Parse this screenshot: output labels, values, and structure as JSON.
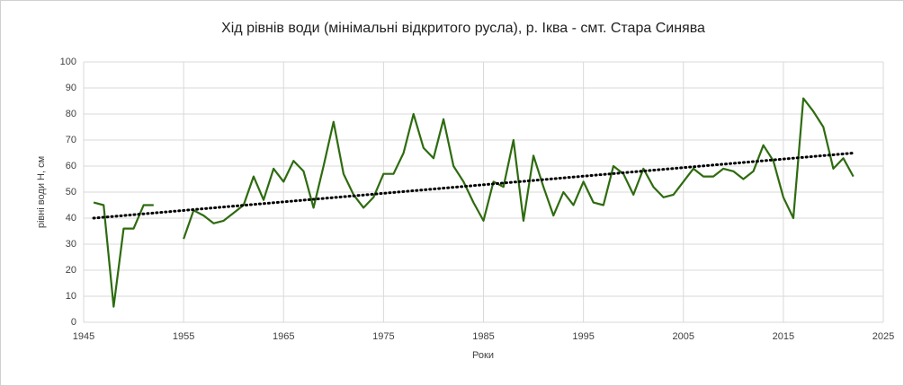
{
  "chart_data": {
    "type": "line",
    "title": "Хід рівнів води (мінімальні відкритого русла), р. Іква - смт. Стара Синява",
    "x_label": "Роки",
    "y_label": "рівні води Н, см",
    "x": [
      1946,
      1947,
      1948,
      1949,
      1950,
      1951,
      1952,
      1953,
      1954,
      1955,
      1956,
      1957,
      1958,
      1959,
      1960,
      1961,
      1962,
      1963,
      1964,
      1965,
      1966,
      1967,
      1968,
      1969,
      1970,
      1971,
      1972,
      1973,
      1974,
      1975,
      1976,
      1977,
      1978,
      1979,
      1980,
      1981,
      1982,
      1983,
      1984,
      1985,
      1986,
      1987,
      1988,
      1989,
      1990,
      1991,
      1992,
      1993,
      1994,
      1995,
      1996,
      1997,
      1998,
      1999,
      2000,
      2001,
      2002,
      2003,
      2004,
      2005,
      2006,
      2007,
      2008,
      2009,
      2010,
      2011,
      2012,
      2013,
      2014,
      2015,
      2016,
      2017,
      2018,
      2019,
      2020,
      2021,
      2022
    ],
    "series": [
      {
        "color": "#2e6b0f",
        "values": [
          46,
          45,
          6,
          36,
          36,
          45,
          45,
          null,
          null,
          32,
          43,
          41,
          38,
          39,
          42,
          45,
          56,
          47,
          59,
          54,
          62,
          58,
          44,
          60,
          77,
          57,
          49,
          44,
          48,
          57,
          57,
          65,
          80,
          67,
          63,
          78,
          60,
          54,
          46,
          39,
          54,
          52,
          70,
          39,
          64,
          52,
          41,
          50,
          45,
          54,
          46,
          45,
          60,
          57,
          49,
          59,
          52,
          48,
          49,
          54,
          59,
          56,
          56,
          59,
          58,
          55,
          58,
          68,
          62,
          48,
          40,
          86,
          81,
          75,
          59,
          63,
          56
        ]
      }
    ],
    "trendline": {
      "x": [
        1946,
        2022
      ],
      "values": [
        40,
        65
      ],
      "color": "#000000"
    },
    "xlim": [
      1945,
      2025
    ],
    "xticks": [
      1945,
      1955,
      1965,
      1975,
      1985,
      1995,
      2005,
      2015,
      2025
    ],
    "ylim": [
      0,
      100
    ],
    "yticks": [
      0,
      10,
      20,
      30,
      40,
      50,
      60,
      70,
      80,
      90,
      100
    ],
    "grid": true
  }
}
